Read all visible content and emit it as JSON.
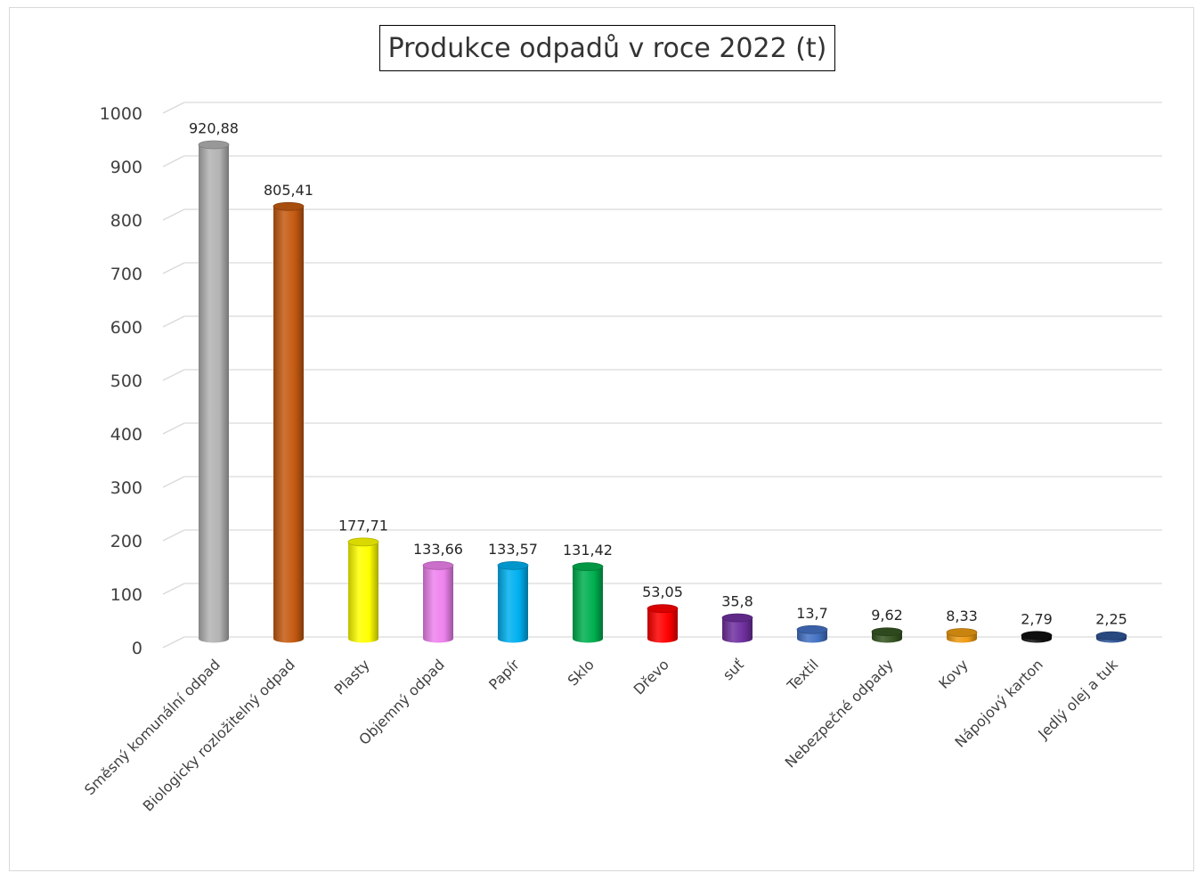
{
  "chart_data": {
    "type": "bar",
    "title": "Produkce odpadů v roce 2022 (t)",
    "xlabel": "",
    "ylabel": "",
    "ylim": [
      0,
      1000
    ],
    "yticks": [
      0,
      100,
      200,
      300,
      400,
      500,
      600,
      700,
      800,
      900,
      1000
    ],
    "grid": true,
    "legend": "none",
    "categories": [
      "Směsný komunální odpad",
      "Biologicky rozložitelný odpad",
      "Plasty",
      "Objemný odpad",
      "Papír",
      "Sklo",
      "Dřevo",
      "suť",
      "Textil",
      "Nebezpečné odpady",
      "Kovy",
      "Nápojový karton",
      "Jedlý olej a tuk"
    ],
    "values": [
      920.88,
      805.41,
      177.71,
      133.66,
      133.57,
      131.42,
      53.05,
      35.8,
      13.7,
      9.62,
      8.33,
      2.79,
      2.25
    ],
    "data_labels": [
      "920,88",
      "805,41",
      "177,71",
      "133,66",
      "133,57",
      "131,42",
      "53,05",
      "35,8",
      "13,7",
      "9,62",
      "8,33",
      "2,79",
      "2,25"
    ],
    "colors": [
      "#b3b3b3",
      "#c55a11",
      "#ffff00",
      "#ee82ee",
      "#00b0f0",
      "#00b050",
      "#ff0000",
      "#7030a0",
      "#4472c4",
      "#375623",
      "#ed9b13",
      "#111111",
      "#2f5597"
    ]
  }
}
